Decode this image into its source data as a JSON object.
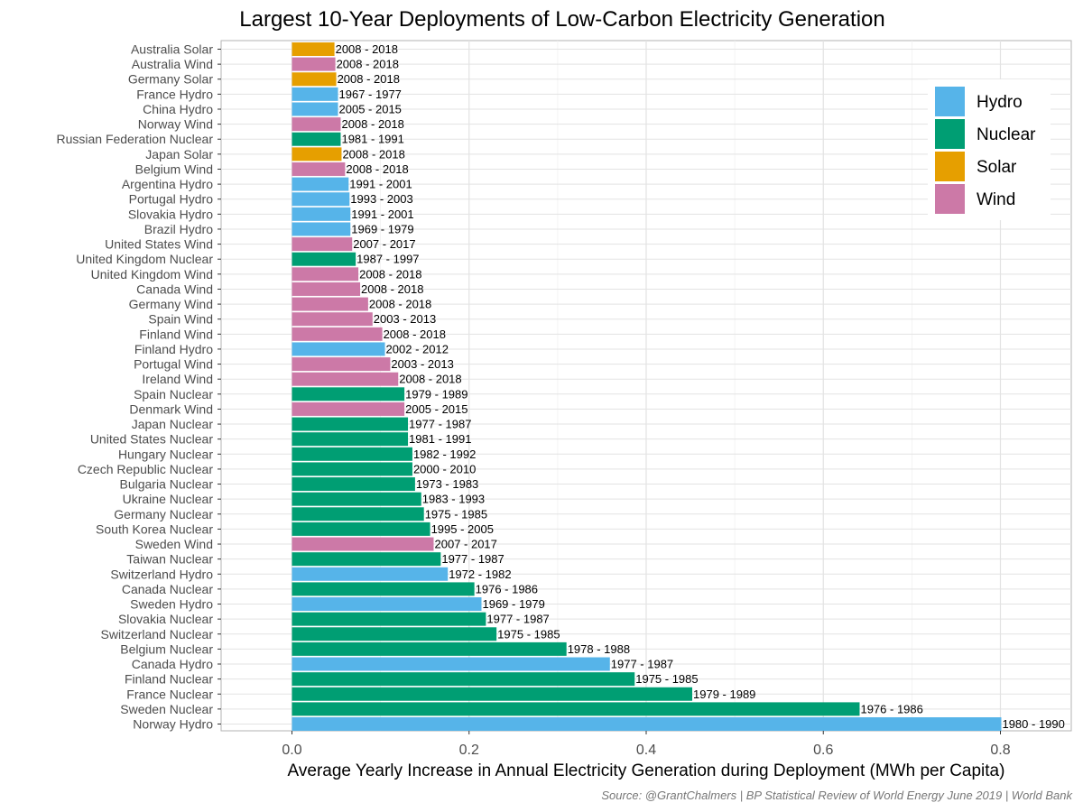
{
  "chart_data": {
    "type": "bar",
    "orientation": "horizontal",
    "title": "Largest 10-Year Deployments of Low-Carbon Electricity Generation",
    "xlabel": "Average Yearly Increase in Annual Electricity Generation during Deployment (MWh per Capita)",
    "ylabel": "",
    "caption": "Source: @GrantChalmers | BP Statistical Review of World Energy June 2019 | World Bank",
    "xlim": [
      -0.08,
      0.88
    ],
    "xticks": [
      0.0,
      0.2,
      0.4,
      0.6,
      0.8
    ],
    "xtick_labels": [
      "0.0",
      "0.2",
      "0.4",
      "0.6",
      "0.8"
    ],
    "grid": true,
    "legend_position": "top-right",
    "colors": {
      "Hydro": "#56B4E9",
      "Nuclear": "#009E73",
      "Solar": "#E69F00",
      "Wind": "#CC79A7"
    },
    "legend": [
      "Hydro",
      "Nuclear",
      "Solar",
      "Wind"
    ],
    "bars": [
      {
        "label": "Australia Solar",
        "type": "Solar",
        "value": 0.048,
        "period": "2008 - 2018"
      },
      {
        "label": "Australia Wind",
        "type": "Wind",
        "value": 0.049,
        "period": "2008 - 2018"
      },
      {
        "label": "Germany Solar",
        "type": "Solar",
        "value": 0.05,
        "period": "2008 - 2018"
      },
      {
        "label": "France Hydro",
        "type": "Hydro",
        "value": 0.052,
        "period": "1967 - 1977"
      },
      {
        "label": "China Hydro",
        "type": "Hydro",
        "value": 0.052,
        "period": "2005 - 2015"
      },
      {
        "label": "Norway Wind",
        "type": "Wind",
        "value": 0.055,
        "period": "2008 - 2018"
      },
      {
        "label": "Russian Federation Nuclear",
        "type": "Nuclear",
        "value": 0.055,
        "period": "1981 - 1991"
      },
      {
        "label": "Japan Solar",
        "type": "Solar",
        "value": 0.056,
        "period": "2008 - 2018"
      },
      {
        "label": "Belgium Wind",
        "type": "Wind",
        "value": 0.06,
        "period": "2008 - 2018"
      },
      {
        "label": "Argentina Hydro",
        "type": "Hydro",
        "value": 0.064,
        "period": "1991 - 2001"
      },
      {
        "label": "Portugal Hydro",
        "type": "Hydro",
        "value": 0.065,
        "period": "1993 - 2003"
      },
      {
        "label": "Slovakia Hydro",
        "type": "Hydro",
        "value": 0.066,
        "period": "1991 - 2001"
      },
      {
        "label": "Brazil Hydro",
        "type": "Hydro",
        "value": 0.066,
        "period": "1969 - 1979"
      },
      {
        "label": "United States Wind",
        "type": "Wind",
        "value": 0.068,
        "period": "2007 - 2017"
      },
      {
        "label": "United Kingdom Nuclear",
        "type": "Nuclear",
        "value": 0.072,
        "period": "1987 - 1997"
      },
      {
        "label": "United Kingdom Wind",
        "type": "Wind",
        "value": 0.075,
        "period": "2008 - 2018"
      },
      {
        "label": "Canada Wind",
        "type": "Wind",
        "value": 0.077,
        "period": "2008 - 2018"
      },
      {
        "label": "Germany Wind",
        "type": "Wind",
        "value": 0.086,
        "period": "2008 - 2018"
      },
      {
        "label": "Spain Wind",
        "type": "Wind",
        "value": 0.091,
        "period": "2003 - 2013"
      },
      {
        "label": "Finland Wind",
        "type": "Wind",
        "value": 0.102,
        "period": "2008 - 2018"
      },
      {
        "label": "Finland Hydro",
        "type": "Hydro",
        "value": 0.105,
        "period": "2002 - 2012"
      },
      {
        "label": "Portugal Wind",
        "type": "Wind",
        "value": 0.111,
        "period": "2003 - 2013"
      },
      {
        "label": "Ireland Wind",
        "type": "Wind",
        "value": 0.12,
        "period": "2008 - 2018"
      },
      {
        "label": "Spain Nuclear",
        "type": "Nuclear",
        "value": 0.127,
        "period": "1979 - 1989"
      },
      {
        "label": "Denmark Wind",
        "type": "Wind",
        "value": 0.127,
        "period": "2005 - 2015"
      },
      {
        "label": "Japan Nuclear",
        "type": "Nuclear",
        "value": 0.131,
        "period": "1977 - 1987"
      },
      {
        "label": "United States Nuclear",
        "type": "Nuclear",
        "value": 0.131,
        "period": "1981 - 1991"
      },
      {
        "label": "Hungary Nuclear",
        "type": "Nuclear",
        "value": 0.136,
        "period": "1982 - 1992"
      },
      {
        "label": "Czech Republic Nuclear",
        "type": "Nuclear",
        "value": 0.136,
        "period": "2000 - 2010"
      },
      {
        "label": "Bulgaria Nuclear",
        "type": "Nuclear",
        "value": 0.139,
        "period": "1973 - 1983"
      },
      {
        "label": "Ukraine Nuclear",
        "type": "Nuclear",
        "value": 0.146,
        "period": "1983 - 1993"
      },
      {
        "label": "Germany Nuclear",
        "type": "Nuclear",
        "value": 0.149,
        "period": "1975 - 1985"
      },
      {
        "label": "South Korea Nuclear",
        "type": "Nuclear",
        "value": 0.156,
        "period": "1995 - 2005"
      },
      {
        "label": "Sweden Wind",
        "type": "Wind",
        "value": 0.16,
        "period": "2007 - 2017"
      },
      {
        "label": "Taiwan Nuclear",
        "type": "Nuclear",
        "value": 0.168,
        "period": "1977 - 1987"
      },
      {
        "label": "Switzerland Hydro",
        "type": "Hydro",
        "value": 0.176,
        "period": "1972 - 1982"
      },
      {
        "label": "Canada Nuclear",
        "type": "Nuclear",
        "value": 0.206,
        "period": "1976 - 1986"
      },
      {
        "label": "Sweden Hydro",
        "type": "Hydro",
        "value": 0.214,
        "period": "1969 - 1979"
      },
      {
        "label": "Slovakia Nuclear",
        "type": "Nuclear",
        "value": 0.219,
        "period": "1977 - 1987"
      },
      {
        "label": "Switzerland Nuclear",
        "type": "Nuclear",
        "value": 0.231,
        "period": "1975 - 1985"
      },
      {
        "label": "Belgium Nuclear",
        "type": "Nuclear",
        "value": 0.31,
        "period": "1978 - 1988"
      },
      {
        "label": "Canada Hydro",
        "type": "Hydro",
        "value": 0.359,
        "period": "1977 - 1987"
      },
      {
        "label": "Finland Nuclear",
        "type": "Nuclear",
        "value": 0.387,
        "period": "1975 - 1985"
      },
      {
        "label": "France Nuclear",
        "type": "Nuclear",
        "value": 0.452,
        "period": "1979 - 1989"
      },
      {
        "label": "Sweden Nuclear",
        "type": "Nuclear",
        "value": 0.641,
        "period": "1976 - 1986"
      },
      {
        "label": "Norway Hydro",
        "type": "Hydro",
        "value": 0.801,
        "period": "1980 - 1990"
      }
    ]
  }
}
